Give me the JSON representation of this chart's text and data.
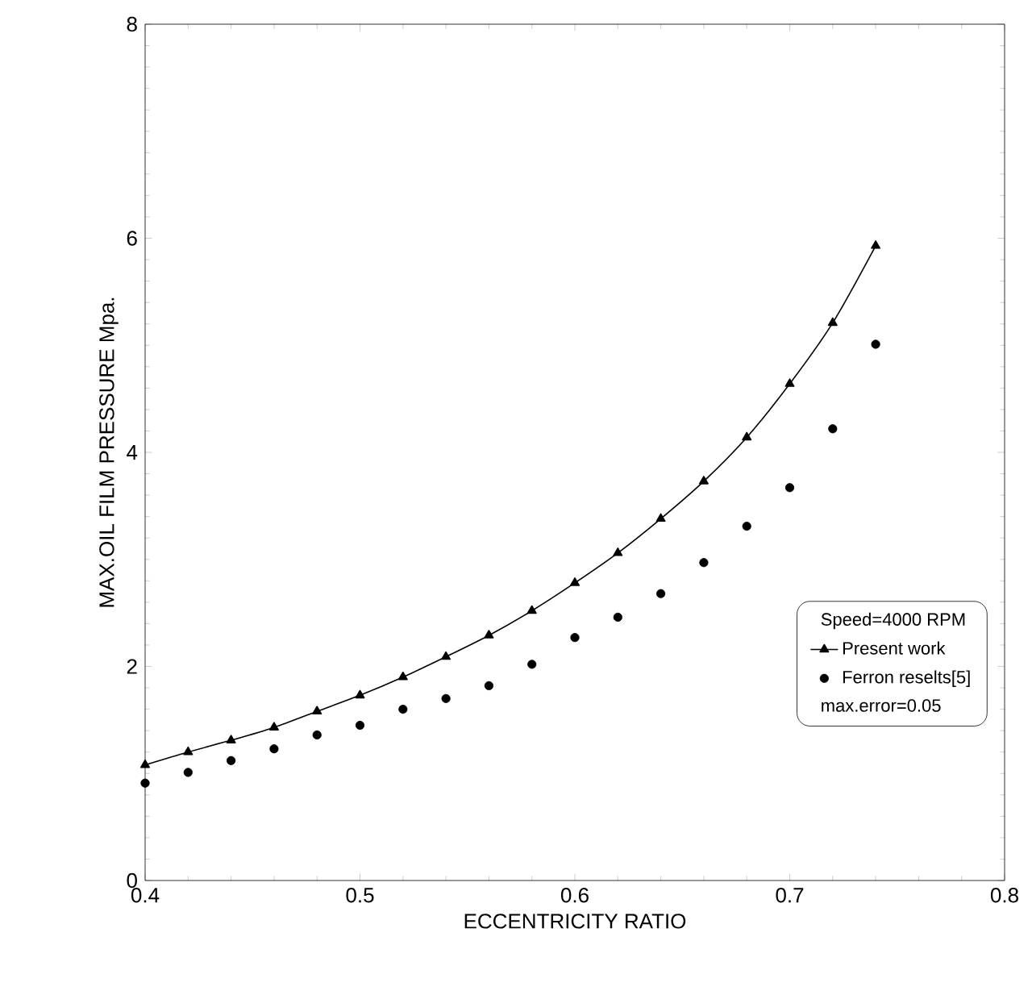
{
  "chart_data": {
    "type": "line",
    "xlabel": "ECCENTRICITY RATIO",
    "ylabel": "MAX.OIL FILM PRESSURE Mpa.",
    "legend_title": "Speed=4000 RPM",
    "annotations": [
      "max.error=0.05"
    ],
    "xlim": [
      0.4,
      0.8
    ],
    "xticks": [
      0.4,
      0.5,
      0.6,
      0.7,
      0.8
    ],
    "ylim": [
      0,
      8
    ],
    "yticks": [
      0,
      2,
      4,
      6,
      8
    ],
    "grid": false,
    "legend": "bottom right",
    "x": [
      0.4,
      0.42,
      0.44,
      0.46,
      0.48,
      0.5,
      0.52,
      0.54,
      0.56,
      0.58,
      0.6,
      0.62,
      0.64,
      0.66,
      0.68,
      0.7,
      0.72,
      0.74
    ],
    "series": [
      {
        "name": "Present work",
        "marker": "triangle",
        "line_style": "solid",
        "color": "#000000",
        "values": [
          1.08,
          1.2,
          1.31,
          1.43,
          1.58,
          1.73,
          1.9,
          2.09,
          2.29,
          2.52,
          2.78,
          3.06,
          3.38,
          3.73,
          4.14,
          4.64,
          5.21,
          5.93
        ]
      },
      {
        "name": "Ferron reselts[5]",
        "type": "scatter",
        "marker": "circle",
        "color": "#000000",
        "values": [
          0.91,
          1.01,
          1.12,
          1.23,
          1.36,
          1.45,
          1.6,
          1.7,
          1.82,
          2.02,
          2.27,
          2.46,
          2.68,
          2.97,
          3.31,
          3.67,
          4.22,
          5.01
        ]
      }
    ]
  }
}
